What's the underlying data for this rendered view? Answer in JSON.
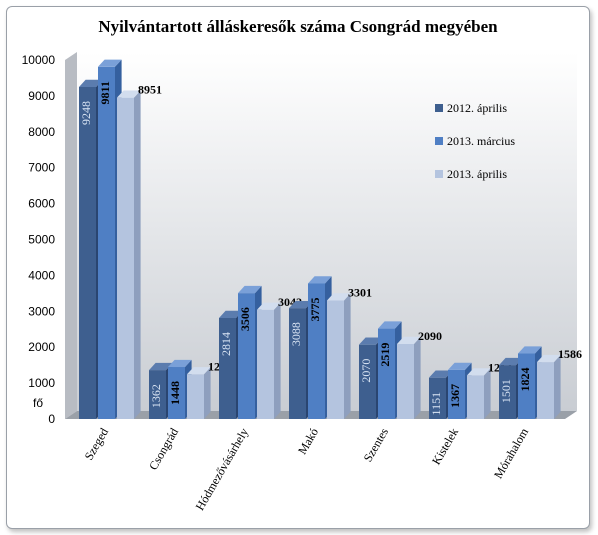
{
  "chart_data": {
    "type": "bar",
    "title": "Nyilvántartott álláskeresők száma Csongrád megyében",
    "ylabel": "fő",
    "xlabel": "",
    "ylim": [
      0,
      10000
    ],
    "yticks": [
      0,
      1000,
      2000,
      3000,
      4000,
      5000,
      6000,
      7000,
      8000,
      9000,
      10000
    ],
    "categories": [
      "Szeged",
      "Csongrád",
      "Hódmezővásárhely",
      "Makó",
      "Szentes",
      "Kistelek",
      "Mórahalom"
    ],
    "series": [
      {
        "name": "2012. április",
        "values": [
          9248,
          1362,
          2814,
          3088,
          2070,
          1151,
          1501
        ]
      },
      {
        "name": "2013. március",
        "values": [
          9811,
          1448,
          3506,
          3775,
          2519,
          1367,
          1824
        ]
      },
      {
        "name": "2013. április",
        "values": [
          8951,
          1245,
          3042,
          3301,
          2090,
          1214,
          1586
        ]
      }
    ],
    "legend_position": "right",
    "grid": false
  },
  "colors": {
    "s1_front": "#3e5f8f",
    "s1_side": "#2a4570",
    "s1_top": "#5b7cae",
    "s2_front": "#4f7fc4",
    "s2_side": "#35609f",
    "s2_top": "#7aa0d8",
    "s3_front": "#b4c4df",
    "s3_side": "#8e9fbe",
    "s3_top": "#d2ddee",
    "wall_top": "#ffffff",
    "wall_bottom": "#c9cdd3",
    "floor": "#9aa0a8"
  }
}
